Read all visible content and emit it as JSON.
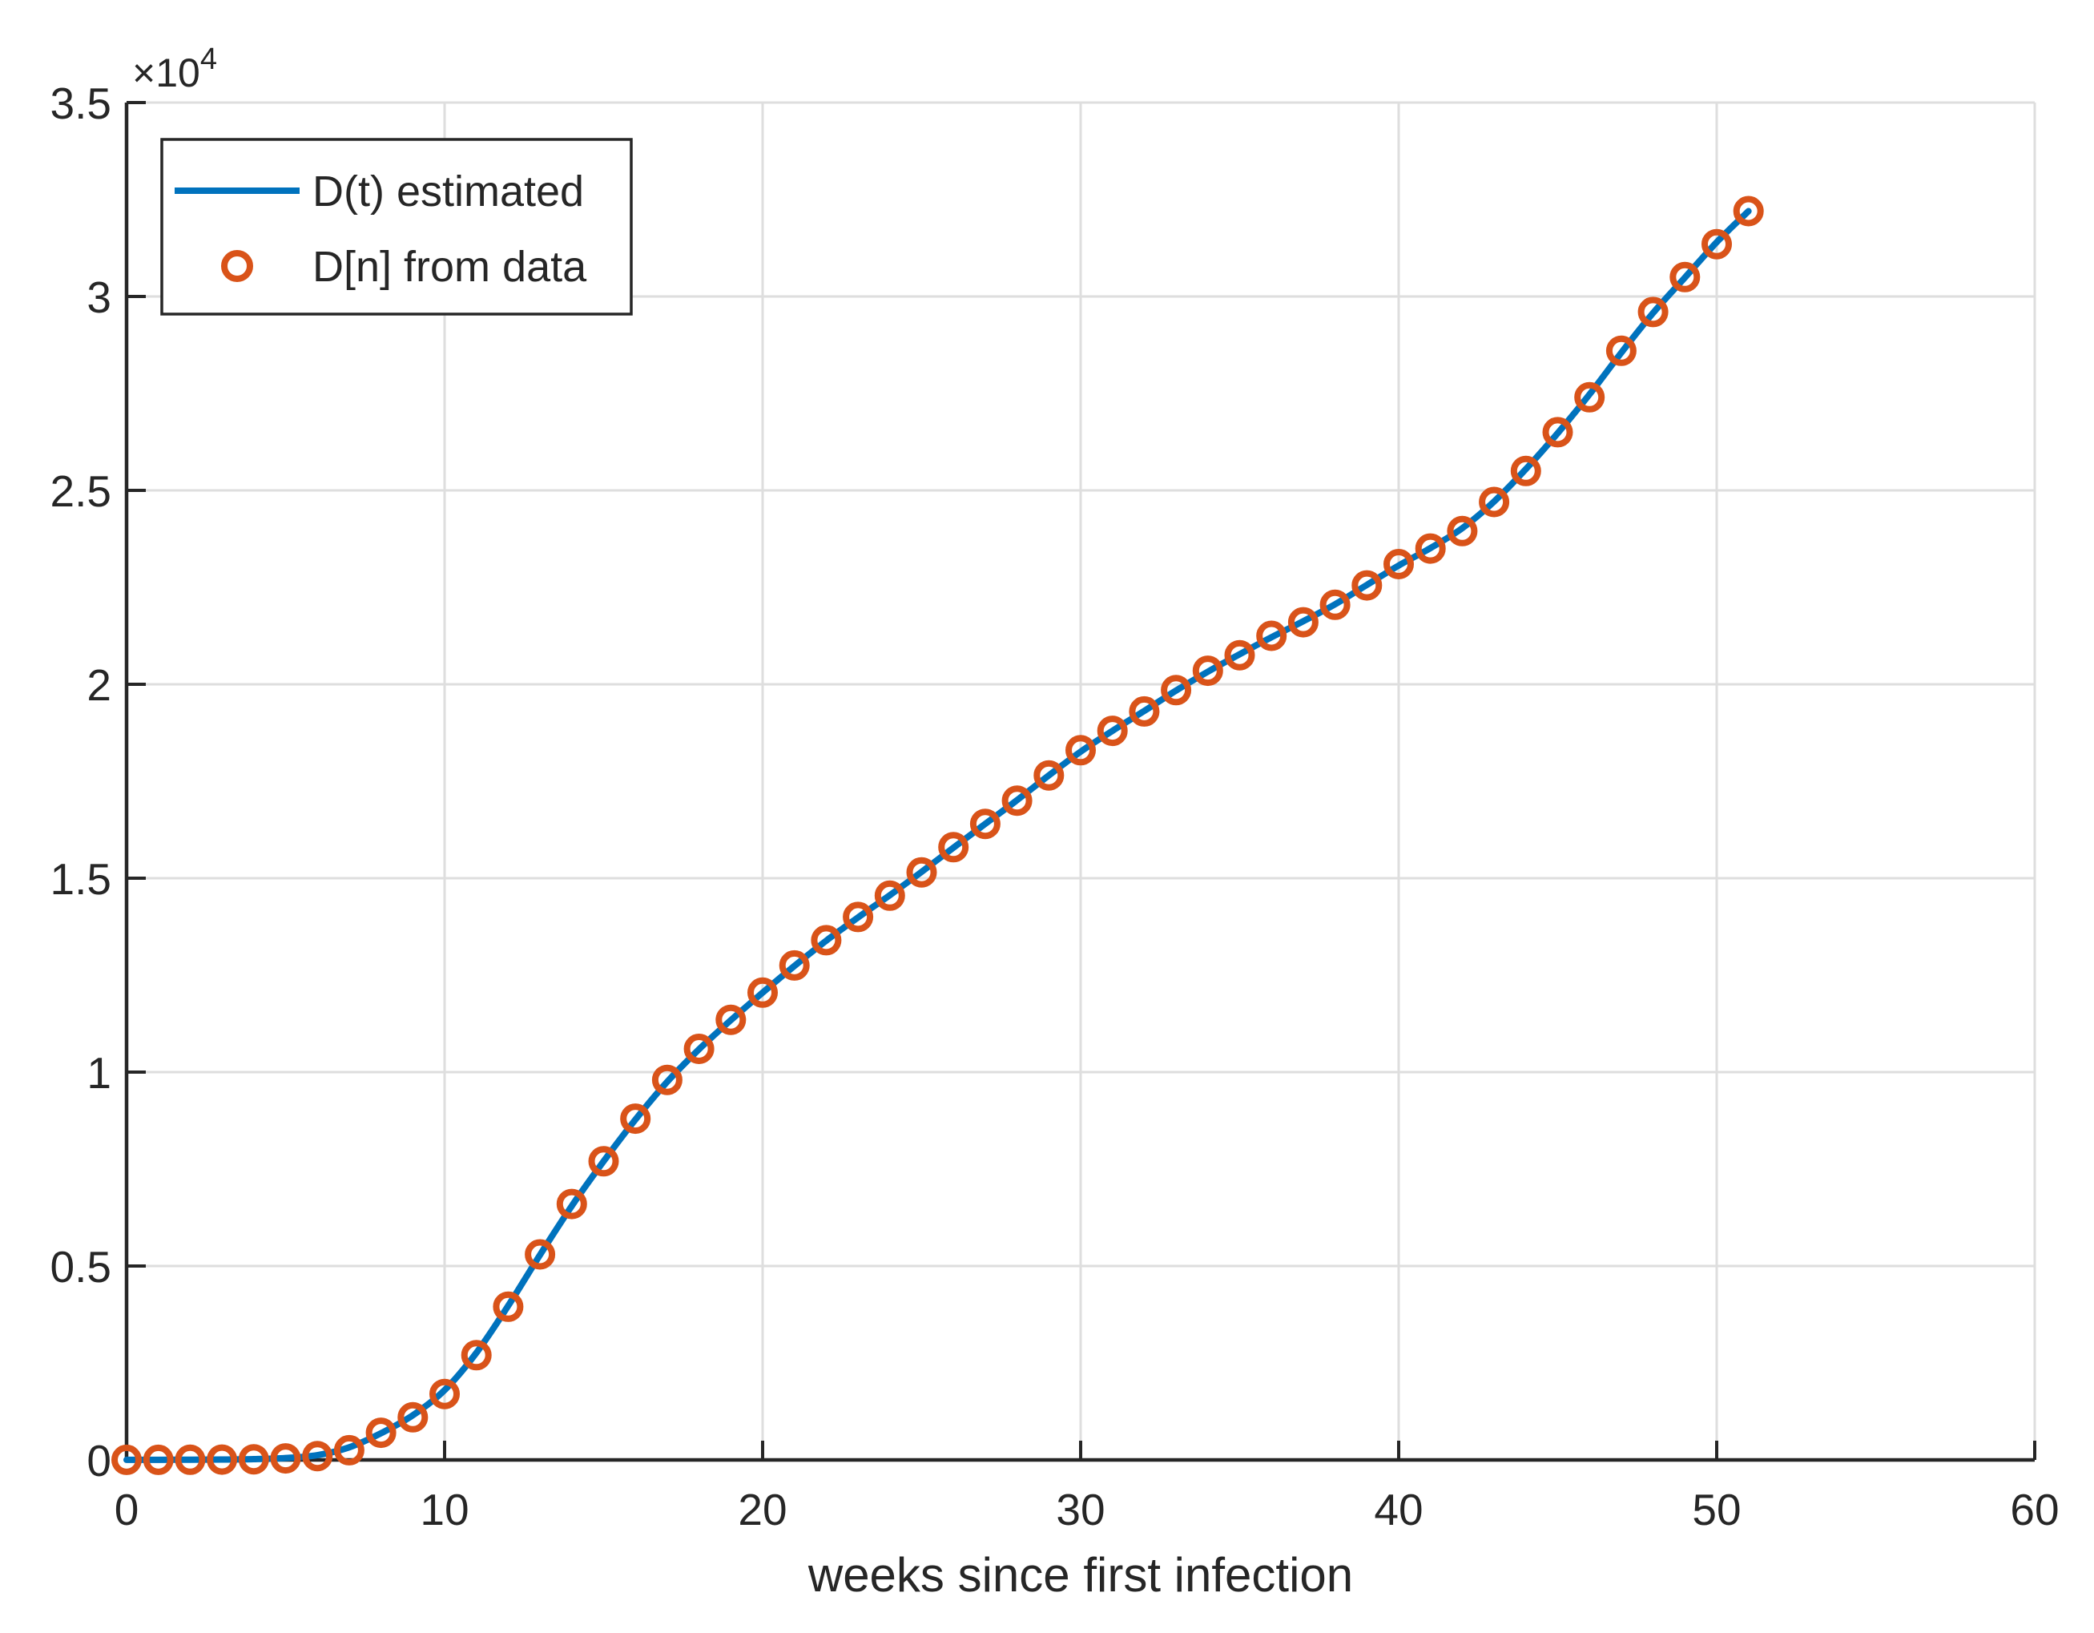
{
  "chart_data": {
    "type": "line",
    "title": "",
    "xlabel": "weeks since first infection",
    "ylabel": "",
    "y_exponent_base": "×10",
    "y_exponent_power": "4",
    "xlim": [
      0,
      60
    ],
    "ylim": [
      0,
      35000
    ],
    "xticks": [
      0,
      10,
      20,
      30,
      40,
      50,
      60
    ],
    "xtick_labels": [
      "0",
      "10",
      "20",
      "30",
      "40",
      "50",
      "60"
    ],
    "yticks": [
      0,
      5000,
      10000,
      15000,
      20000,
      25000,
      30000,
      35000
    ],
    "ytick_labels": [
      "0",
      "0.5",
      "1",
      "1.5",
      "2",
      "2.5",
      "3",
      "3.5"
    ],
    "grid": true,
    "legend_position": "northwest",
    "weeks": [
      0,
      1,
      2,
      3,
      4,
      5,
      6,
      7,
      8,
      9,
      10,
      11,
      12,
      13,
      14,
      15,
      16,
      17,
      18,
      19,
      20,
      21,
      22,
      23,
      24,
      25,
      26,
      27,
      28,
      29,
      30,
      31,
      32,
      33,
      34,
      35,
      36,
      37,
      38,
      39,
      40,
      41,
      42,
      43,
      44,
      45,
      46,
      47,
      48,
      49,
      50,
      51
    ],
    "series": [
      {
        "name": "D(t) estimated",
        "type": "line",
        "color": "#0072BD",
        "values": [
          2,
          3,
          6,
          10,
          20,
          49,
          122,
          325,
          688,
          1150,
          1800,
          2763,
          3975,
          5288,
          6550,
          7700,
          8775,
          9750,
          10588,
          11338,
          12050,
          12738,
          13388,
          13988,
          14563,
          15163,
          15788,
          16400,
          17013,
          17650,
          18263,
          18800,
          19313,
          19838,
          20325,
          20775,
          21213,
          21625,
          22063,
          22563,
          23063,
          23513,
          24025,
          24713,
          25550,
          26475,
          27475,
          28550,
          29575,
          30488,
          31400,
          32200
        ]
      },
      {
        "name": "D[n] from data",
        "type": "scatter",
        "marker": "o",
        "color": "#D95319",
        "values": [
          2,
          3,
          5,
          9,
          16,
          40,
          100,
          250,
          700,
          1100,
          1700,
          2700,
          3950,
          5300,
          6600,
          7700,
          8800,
          9800,
          10600,
          11350,
          12050,
          12750,
          13400,
          14000,
          14550,
          15150,
          15800,
          16400,
          17000,
          17650,
          18300,
          18800,
          19300,
          19850,
          20350,
          20750,
          21250,
          21600,
          22050,
          22550,
          23100,
          23500,
          23950,
          24700,
          25500,
          26500,
          27400,
          28600,
          29600,
          30500,
          31350,
          32200
        ]
      }
    ],
    "colors": {
      "line": "#0072BD",
      "marker": "#D95319",
      "grid": "#DEDEDE",
      "axis": "#262626",
      "background": "#FFFFFF"
    }
  }
}
